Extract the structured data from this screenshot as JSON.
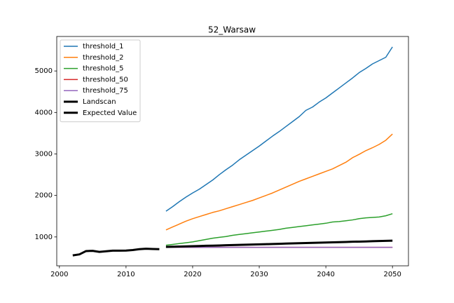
{
  "chart_data": {
    "type": "line",
    "title": "52_Warsaw",
    "xlim": [
      1999.6,
      2052.4
    ],
    "ylim": [
      304,
      5831
    ],
    "xticks": [
      2000,
      2010,
      2020,
      2030,
      2040,
      2050
    ],
    "yticks": [
      1000,
      2000,
      3000,
      4000,
      5000
    ],
    "legend": "upper left",
    "series": [
      {
        "name": "threshold_1",
        "color": "#1f77b4",
        "linewidth": 1.5,
        "x": [
          2016,
          2017,
          2018,
          2019,
          2020,
          2021,
          2022,
          2023,
          2024,
          2025,
          2026,
          2027,
          2028,
          2029,
          2030,
          2031,
          2032,
          2033,
          2034,
          2035,
          2036,
          2037,
          2038,
          2039,
          2040,
          2041,
          2042,
          2043,
          2044,
          2045,
          2046,
          2047,
          2048,
          2049,
          2050
        ],
        "values": [
          1620,
          1730,
          1850,
          1960,
          2060,
          2150,
          2260,
          2370,
          2500,
          2620,
          2730,
          2860,
          2970,
          3080,
          3190,
          3310,
          3430,
          3540,
          3660,
          3780,
          3900,
          4050,
          4130,
          4250,
          4350,
          4470,
          4590,
          4710,
          4830,
          4960,
          5060,
          5170,
          5250,
          5330,
          5580
        ]
      },
      {
        "name": "threshold_2",
        "color": "#ff7f0e",
        "linewidth": 1.5,
        "x": [
          2016,
          2017,
          2018,
          2019,
          2020,
          2021,
          2022,
          2023,
          2024,
          2025,
          2026,
          2027,
          2028,
          2029,
          2030,
          2031,
          2032,
          2033,
          2034,
          2035,
          2036,
          2037,
          2038,
          2039,
          2040,
          2041,
          2042,
          2043,
          2044,
          2045,
          2046,
          2047,
          2048,
          2049,
          2050
        ],
        "values": [
          1170,
          1240,
          1310,
          1380,
          1440,
          1490,
          1540,
          1590,
          1630,
          1680,
          1730,
          1780,
          1830,
          1880,
          1940,
          2000,
          2060,
          2130,
          2200,
          2270,
          2340,
          2400,
          2460,
          2520,
          2580,
          2640,
          2720,
          2800,
          2910,
          2990,
          3080,
          3150,
          3230,
          3330,
          3480
        ]
      },
      {
        "name": "threshold_5",
        "color": "#2ca02c",
        "linewidth": 1.5,
        "x": [
          2016,
          2017,
          2018,
          2019,
          2020,
          2021,
          2022,
          2023,
          2024,
          2025,
          2026,
          2027,
          2028,
          2029,
          2030,
          2031,
          2032,
          2033,
          2034,
          2035,
          2036,
          2037,
          2038,
          2039,
          2040,
          2041,
          2042,
          2043,
          2044,
          2045,
          2046,
          2047,
          2048,
          2049,
          2050
        ],
        "values": [
          800,
          820,
          840,
          860,
          880,
          910,
          940,
          970,
          990,
          1010,
          1040,
          1060,
          1080,
          1100,
          1120,
          1140,
          1160,
          1180,
          1210,
          1230,
          1250,
          1270,
          1290,
          1310,
          1330,
          1360,
          1370,
          1390,
          1410,
          1440,
          1460,
          1470,
          1480,
          1510,
          1560
        ]
      },
      {
        "name": "threshold_50",
        "color": "#d62728",
        "linewidth": 1.5,
        "x": [
          2016,
          2017,
          2018,
          2019,
          2020,
          2021,
          2022,
          2023,
          2024,
          2025,
          2026,
          2027,
          2028,
          2029,
          2030,
          2031,
          2032,
          2033,
          2034,
          2035,
          2036,
          2037,
          2038,
          2039,
          2040,
          2041,
          2042,
          2043,
          2044,
          2045,
          2046,
          2047,
          2048,
          2049,
          2050
        ],
        "values": [
          750,
          750,
          750,
          750,
          750,
          750,
          750,
          750,
          750,
          750,
          750,
          750,
          750,
          750,
          750,
          750,
          750,
          750,
          750,
          750,
          750,
          750,
          750,
          750,
          750,
          750,
          750,
          750,
          750,
          750,
          750,
          750,
          750,
          750,
          750
        ]
      },
      {
        "name": "threshold_75",
        "color": "#9467bd",
        "linewidth": 1.5,
        "x": [
          2016,
          2017,
          2018,
          2019,
          2020,
          2021,
          2022,
          2023,
          2024,
          2025,
          2026,
          2027,
          2028,
          2029,
          2030,
          2031,
          2032,
          2033,
          2034,
          2035,
          2036,
          2037,
          2038,
          2039,
          2040,
          2041,
          2042,
          2043,
          2044,
          2045,
          2046,
          2047,
          2048,
          2049,
          2050
        ],
        "values": [
          750,
          750,
          750,
          750,
          750,
          750,
          750,
          750,
          750,
          750,
          750,
          750,
          750,
          750,
          750,
          750,
          750,
          750,
          750,
          750,
          750,
          750,
          750,
          750,
          750,
          750,
          750,
          750,
          750,
          750,
          750,
          750,
          750,
          750,
          750
        ]
      },
      {
        "name": "Landscan",
        "color": "#000000",
        "linewidth": 3,
        "x": [
          2002,
          2003,
          2004,
          2005,
          2006,
          2007,
          2008,
          2009,
          2010,
          2011,
          2012,
          2013,
          2014,
          2015
        ],
        "values": [
          555,
          580,
          660,
          665,
          640,
          655,
          670,
          670,
          672,
          685,
          705,
          715,
          710,
          705
        ]
      },
      {
        "name": "Expected Value",
        "color": "#000000",
        "linewidth": 3,
        "x": [
          2016,
          2017,
          2018,
          2019,
          2020,
          2021,
          2022,
          2023,
          2024,
          2025,
          2026,
          2027,
          2028,
          2029,
          2030,
          2031,
          2032,
          2033,
          2034,
          2035,
          2036,
          2037,
          2038,
          2039,
          2040,
          2041,
          2042,
          2043,
          2044,
          2045,
          2046,
          2047,
          2048,
          2049,
          2050
        ],
        "values": [
          760,
          765,
          769,
          774,
          778,
          782,
          787,
          791,
          795,
          800,
          804,
          809,
          813,
          818,
          822,
          826,
          831,
          835,
          840,
          844,
          848,
          853,
          857,
          862,
          866,
          870,
          875,
          879,
          884,
          888,
          892,
          897,
          901,
          906,
          910
        ]
      }
    ]
  }
}
